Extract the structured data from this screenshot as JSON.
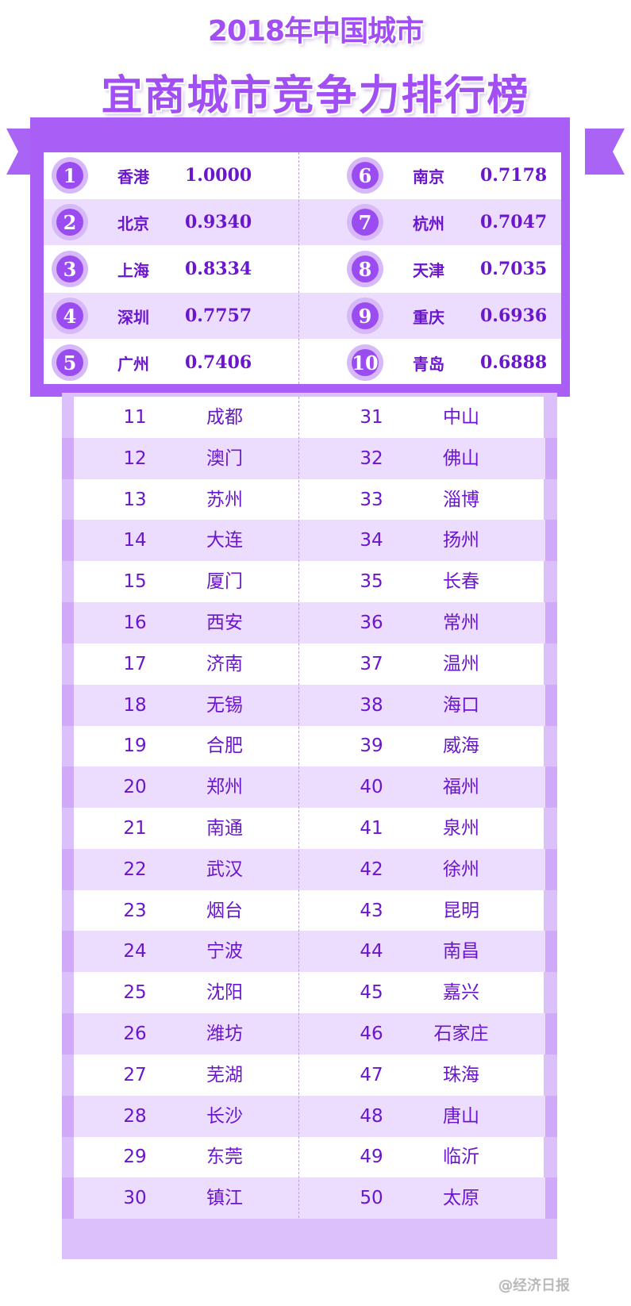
{
  "title_line1": "2018年中国城市",
  "title_line2": "宜商城市竞争力排行榜",
  "top10": [
    {
      "rank": "1",
      "city": "香港",
      "score": "1.0000"
    },
    {
      "rank": "2",
      "city": "北京",
      "score": "0.9340"
    },
    {
      "rank": "3",
      "city": "上海",
      "score": "0.8334"
    },
    {
      "rank": "4",
      "city": "深圳",
      "score": "0.7757"
    },
    {
      "rank": "5",
      "city": "广州",
      "score": "0.7406"
    },
    {
      "rank": "6",
      "city": "南京",
      "score": "0.7178"
    },
    {
      "rank": "7",
      "city": "杭州",
      "score": "0.7047"
    },
    {
      "rank": "8",
      "city": "天津",
      "score": "0.7035"
    },
    {
      "rank": "9",
      "city": "重庆",
      "score": "0.6936"
    },
    {
      "rank": "10",
      "city": "青岛",
      "score": "0.6888"
    }
  ],
  "list": [
    {
      "rank": "11",
      "city": "成都"
    },
    {
      "rank": "12",
      "city": "澳门"
    },
    {
      "rank": "13",
      "city": "苏州"
    },
    {
      "rank": "14",
      "city": "大连"
    },
    {
      "rank": "15",
      "city": "厦门"
    },
    {
      "rank": "16",
      "city": "西安"
    },
    {
      "rank": "17",
      "city": "济南"
    },
    {
      "rank": "18",
      "city": "无锡"
    },
    {
      "rank": "19",
      "city": "合肥"
    },
    {
      "rank": "20",
      "city": "郑州"
    },
    {
      "rank": "21",
      "city": "南通"
    },
    {
      "rank": "22",
      "city": "武汉"
    },
    {
      "rank": "23",
      "city": "烟台"
    },
    {
      "rank": "24",
      "city": "宁波"
    },
    {
      "rank": "25",
      "city": "沈阳"
    },
    {
      "rank": "26",
      "city": "潍坊"
    },
    {
      "rank": "27",
      "city": "芜湖"
    },
    {
      "rank": "28",
      "city": "长沙"
    },
    {
      "rank": "29",
      "city": "东莞"
    },
    {
      "rank": "30",
      "city": "镇江"
    },
    {
      "rank": "31",
      "city": "中山"
    },
    {
      "rank": "32",
      "city": "佛山"
    },
    {
      "rank": "33",
      "city": "淄博"
    },
    {
      "rank": "34",
      "city": "扬州"
    },
    {
      "rank": "35",
      "city": "长春"
    },
    {
      "rank": "36",
      "city": "常州"
    },
    {
      "rank": "37",
      "city": "温州"
    },
    {
      "rank": "38",
      "city": "海口"
    },
    {
      "rank": "39",
      "city": "威海"
    },
    {
      "rank": "40",
      "city": "福州"
    },
    {
      "rank": "41",
      "city": "泉州"
    },
    {
      "rank": "42",
      "city": "徐州"
    },
    {
      "rank": "43",
      "city": "昆明"
    },
    {
      "rank": "44",
      "city": "南昌"
    },
    {
      "rank": "45",
      "city": "嘉兴"
    },
    {
      "rank": "46",
      "city": "石家庄"
    },
    {
      "rank": "47",
      "city": "珠海"
    },
    {
      "rank": "48",
      "city": "唐山"
    },
    {
      "rank": "49",
      "city": "临沂"
    },
    {
      "rank": "50",
      "city": "太原"
    }
  ],
  "watermark": "@经济日报",
  "colors": {
    "accent": "#a95ff5",
    "text": "#6a16cc",
    "stripe": "#ecdcfd"
  }
}
